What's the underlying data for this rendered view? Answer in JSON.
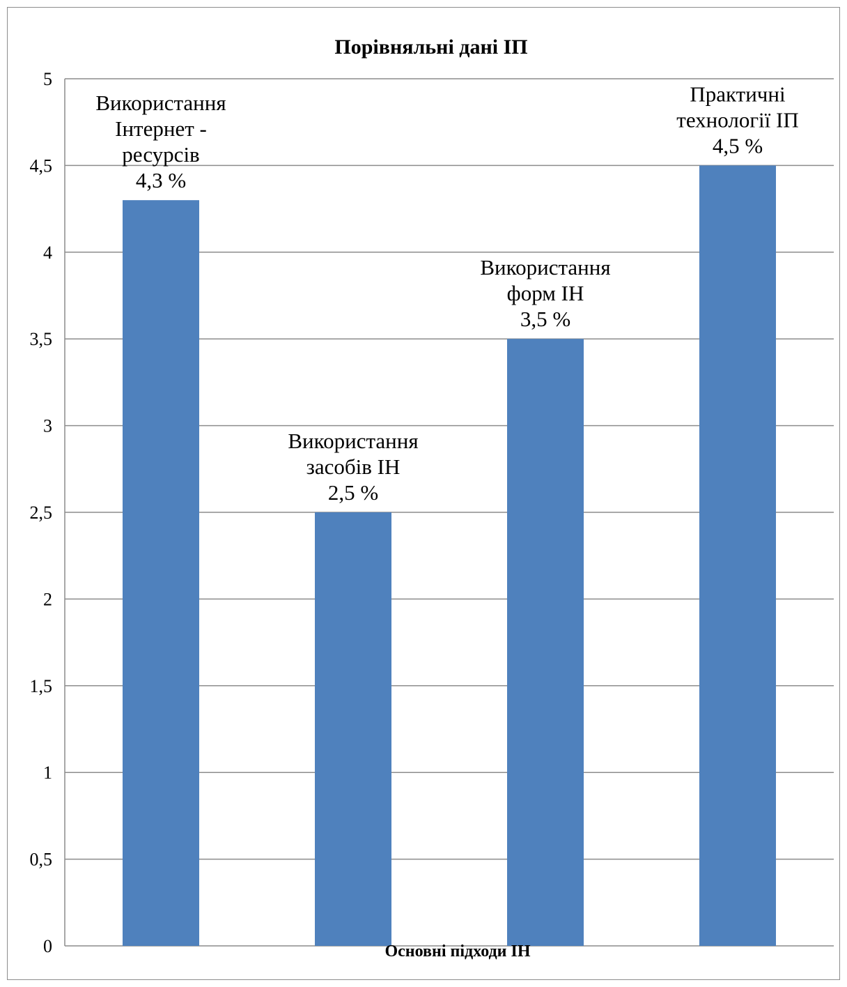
{
  "chart_data": {
    "type": "bar",
    "title": "Порівняльні дані ІП",
    "xlabel": "Основні підходи ІН",
    "ylabel": "",
    "ylim": [
      0,
      5
    ],
    "yticks": [
      "0",
      "0,5",
      "1",
      "1,5",
      "2",
      "2,5",
      "3",
      "3,5",
      "4",
      "4,5",
      "5"
    ],
    "ytick_values": [
      0,
      0.5,
      1,
      1.5,
      2,
      2.5,
      3,
      3.5,
      4,
      4.5,
      5
    ],
    "grid": true,
    "legend": "none",
    "bar_color": "#4f81bd",
    "categories": [
      "Використання Інтернет - ресурсів",
      "Використання засобів ІН",
      "Використання форм ІН",
      "Практичні технології ІП"
    ],
    "values": [
      4.3,
      2.5,
      3.5,
      4.5
    ],
    "data_labels": [
      [
        "Використання",
        "Інтернет -",
        "ресурсів",
        "4,3 %"
      ],
      [
        "Використання",
        "засобів ІН",
        "2,5 %"
      ],
      [
        "Використання",
        "форм ІН",
        "3,5 %"
      ],
      [
        "Практичні",
        "технології ІП",
        "4,5 %"
      ]
    ]
  }
}
